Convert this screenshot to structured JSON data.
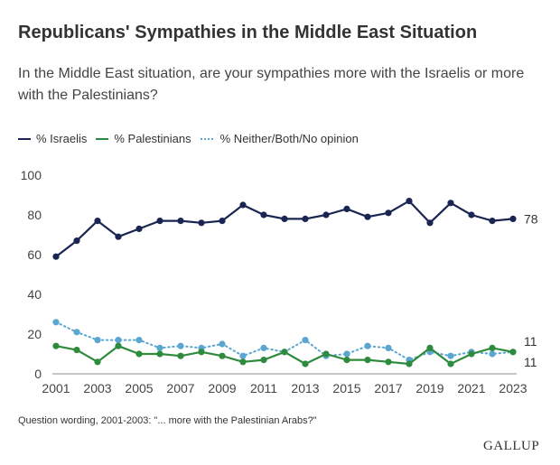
{
  "chart_data": {
    "type": "line",
    "title": "Republicans' Sympathies in the Middle East Situation",
    "subtitle": "In the Middle East situation, are your sympathies more with the Israelis or more with the Palestinians?",
    "x": [
      2001,
      2002,
      2003,
      2004,
      2005,
      2006,
      2007,
      2008,
      2009,
      2010,
      2011,
      2012,
      2013,
      2014,
      2015,
      2016,
      2017,
      2018,
      2019,
      2020,
      2021,
      2022,
      2023
    ],
    "x_tick_labels": [
      "2001",
      "2003",
      "2005",
      "2007",
      "2009",
      "2011",
      "2013",
      "2015",
      "2017",
      "2019",
      "2021",
      "2023"
    ],
    "y_tick_labels": [
      "0",
      "20",
      "40",
      "60",
      "80",
      "100"
    ],
    "ylim": [
      0,
      100
    ],
    "grid": false,
    "legend_position": "top-left",
    "series": [
      {
        "name": "% Israelis",
        "style": "solid",
        "color": "#1a2552",
        "values": [
          59,
          67,
          77,
          69,
          73,
          77,
          77,
          76,
          77,
          85,
          80,
          78,
          78,
          80,
          83,
          79,
          81,
          87,
          76,
          86,
          80,
          77,
          78
        ],
        "end_label": "78"
      },
      {
        "name": "% Palestinians",
        "style": "solid",
        "color": "#2e8b3d",
        "values": [
          14,
          12,
          6,
          14,
          10,
          10,
          9,
          11,
          9,
          6,
          7,
          11,
          5,
          10,
          7,
          7,
          6,
          5,
          13,
          5,
          10,
          13,
          11
        ],
        "end_label": "11"
      },
      {
        "name": "% Neither/Both/No opinion",
        "style": "dotted",
        "color": "#5ba6d1",
        "values": [
          26,
          21,
          17,
          17,
          17,
          13,
          14,
          13,
          15,
          9,
          13,
          11,
          17,
          9,
          10,
          14,
          13,
          7,
          11,
          9,
          11,
          10,
          11
        ],
        "end_label": "11"
      }
    ]
  },
  "footnote": "Question wording, 2001-2003: \"... more with the Palestinian Arabs?\"",
  "brand": "GALLUP"
}
